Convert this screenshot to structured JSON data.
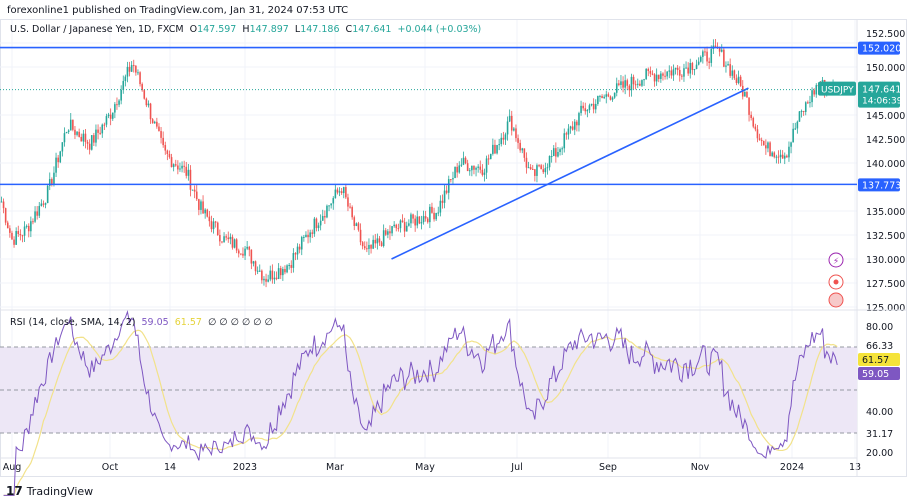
{
  "publish_line": "forexonline1 published on TradingView.com, Jan 31, 2024 07:53 UTC",
  "legend": {
    "symbol": "U.S. Dollar / Japanese Yen, 1D, FXCM",
    "o_label": "O",
    "o": "147.597",
    "h_label": "H",
    "h": "147.897",
    "l_label": "L",
    "l": "147.186",
    "c_label": "C",
    "c": "147.641",
    "change": "+0.044 (+0.03%)"
  },
  "rsi_legend": {
    "label": "RSI (14, close, SMA, 14, 2)",
    "rsi": "59.05",
    "sma": "61.57",
    "empty": "∅ ∅ ∅ ∅ ∅ ∅"
  },
  "footer": {
    "brand": "TradingView"
  },
  "colors": {
    "up": "#26a69a",
    "down": "#ef5350",
    "line": "#2962ff",
    "rsi": "#7e57c2",
    "rsi_sma": "#f2e28a",
    "band": "#ede7f6"
  },
  "icons": [
    "lightning-icon",
    "record-icon",
    "us-flag-events-icon"
  ],
  "chart_data": [
    {
      "type": "candlestick",
      "symbol": "USDJPY",
      "timeframe": "1D",
      "price_axis": {
        "ticks": [
          "152.500",
          "150.000",
          "145.000",
          "142.500",
          "140.000",
          "135.000",
          "132.500",
          "130.000",
          "127.500",
          "125.000"
        ],
        "ylim": [
          125,
          152.5
        ]
      },
      "time_axis": {
        "ticks": [
          "Aug",
          "Oct",
          "14",
          "2023",
          "Mar",
          "May",
          "Jul",
          "Sep",
          "Nov",
          "2024",
          "13"
        ]
      },
      "approx_closes": [
        [
          "2022-07-25",
          136
        ],
        [
          "2022-08-01",
          132
        ],
        [
          "2022-08-10",
          133
        ],
        [
          "2022-08-25",
          137
        ],
        [
          "2022-09-07",
          144
        ],
        [
          "2022-09-22",
          142
        ],
        [
          "2022-10-05",
          145
        ],
        [
          "2022-10-20",
          150.5
        ],
        [
          "2022-10-28",
          147
        ],
        [
          "2022-11-10",
          141
        ],
        [
          "2022-11-25",
          139
        ],
        [
          "2022-12-05",
          135
        ],
        [
          "2022-12-20",
          132
        ],
        [
          "2023-01-03",
          131
        ],
        [
          "2023-01-16",
          128
        ],
        [
          "2023-02-01",
          129.5
        ],
        [
          "2023-02-15",
          133
        ],
        [
          "2023-03-08",
          137.5
        ],
        [
          "2023-03-15",
          134
        ],
        [
          "2023-03-24",
          130.5
        ],
        [
          "2023-04-10",
          133
        ],
        [
          "2023-04-25",
          134
        ],
        [
          "2023-05-10",
          135
        ],
        [
          "2023-05-25",
          140
        ],
        [
          "2023-06-10",
          139.5
        ],
        [
          "2023-06-28",
          144.5
        ],
        [
          "2023-07-12",
          138.5
        ],
        [
          "2023-07-28",
          141
        ],
        [
          "2023-08-15",
          145.5
        ],
        [
          "2023-09-05",
          147.5
        ],
        [
          "2023-09-25",
          149
        ],
        [
          "2023-10-20",
          149.8
        ],
        [
          "2023-11-13",
          151.7
        ],
        [
          "2023-11-22",
          149.5
        ],
        [
          "2023-12-01",
          147
        ],
        [
          "2023-12-07",
          144
        ],
        [
          "2023-12-14",
          141.5
        ],
        [
          "2023-12-28",
          141
        ],
        [
          "2024-01-05",
          144.5
        ],
        [
          "2024-01-18",
          148.2
        ],
        [
          "2024-01-31",
          147.641
        ]
      ],
      "last_price": {
        "symbol": "USDJPY",
        "value": "147.641",
        "countdown": "14:06:39"
      },
      "horizontal_lines": [
        {
          "value": 152.02,
          "label": "152.020"
        },
        {
          "value": 137.773,
          "label": "137.773"
        }
      ],
      "trend_line": {
        "from": [
          "2023-04-10",
          130
        ],
        "to": [
          "2023-12-03",
          147.8
        ]
      }
    },
    {
      "type": "line",
      "name": "RSI (14, close, SMA, 14, 2)",
      "axis_ticks": [
        "80.00",
        "66.33",
        "40.00",
        "31.17",
        "20.00"
      ],
      "bands": [
        66.33,
        31.17
      ],
      "last_rsi": "59.05",
      "last_sma": "61.57"
    }
  ]
}
